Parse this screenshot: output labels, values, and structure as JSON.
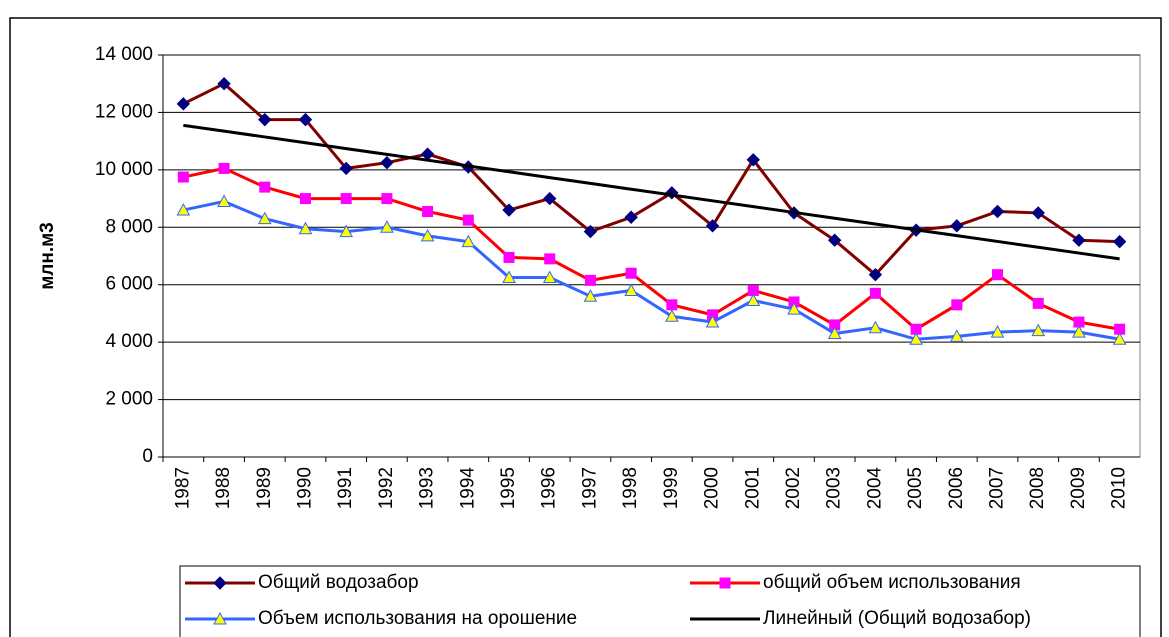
{
  "chart_data": {
    "type": "line",
    "y_label": "млн.м3",
    "categories": [
      "1987",
      "1988",
      "1989",
      "1990",
      "1991",
      "1992",
      "1993",
      "1994",
      "1995",
      "1996",
      "1997",
      "1998",
      "1999",
      "2000",
      "2001",
      "2002",
      "2003",
      "2004",
      "2005",
      "2006",
      "2007",
      "2008",
      "2009",
      "2010"
    ],
    "series": [
      {
        "name": "Общий водозабор",
        "color": "#800000",
        "marker": "diamond",
        "marker_color": "#000080",
        "values": [
          12300,
          13000,
          11750,
          11750,
          10050,
          10250,
          10550,
          10100,
          8600,
          9000,
          7850,
          8350,
          9200,
          8050,
          10350,
          8500,
          7550,
          6350,
          7900,
          8050,
          8550,
          8500,
          7550,
          7500
        ]
      },
      {
        "name": "общий объем использования",
        "color": "#ff0000",
        "marker": "square",
        "marker_color": "#ff00ff",
        "values": [
          9750,
          10050,
          9400,
          9000,
          9000,
          9000,
          8550,
          8250,
          6950,
          6900,
          6150,
          6400,
          5300,
          4950,
          5800,
          5400,
          4600,
          5700,
          4450,
          5300,
          6350,
          5350,
          4700,
          4450
        ]
      },
      {
        "name": "Объем использования на орошение",
        "color": "#3366ff",
        "marker": "triangle",
        "marker_color": "#ffff00",
        "values": [
          8600,
          8900,
          8300,
          7950,
          7850,
          8000,
          7700,
          7500,
          6250,
          6250,
          5600,
          5800,
          4900,
          4700,
          5450,
          5150,
          4300,
          4500,
          4100,
          4200,
          4350,
          4400,
          4350,
          4100
        ]
      },
      {
        "name": "Линейный (Общий водозабор)",
        "color": "#000000",
        "marker": "none",
        "values": [
          11550,
          11348,
          11146,
          10943,
          10741,
          10539,
          10337,
          10135,
          9933,
          9730,
          9528,
          9326,
          9124,
          8922,
          8720,
          8517,
          8315,
          8113,
          7911,
          7709,
          7507,
          7304,
          7102,
          6900
        ]
      }
    ],
    "ylim": [
      0,
      14000
    ],
    "yticks": [
      0,
      {
        "value": 2000,
        "label": "2 000"
      },
      {
        "value": 4000,
        "label": "4 000"
      },
      {
        "value": 6000,
        "label": "6 000"
      },
      {
        "value": 8000,
        "label": "8 000"
      },
      {
        "value": 10000,
        "label": "10 000"
      },
      {
        "value": 12000,
        "label": "12 000"
      },
      {
        "value": 14000,
        "label": "14 000"
      }
    ],
    "grid": true
  }
}
